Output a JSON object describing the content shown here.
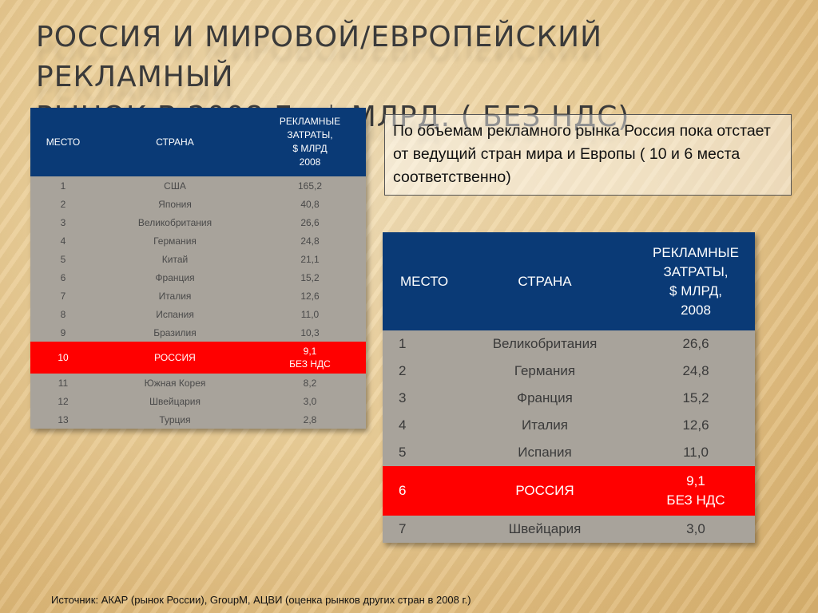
{
  "title": {
    "line1": "РОССИЯ И МИРОВОЙ/ЕВРОПЕЙСКИЙ РЕКЛАМНЫЙ",
    "line2": "РЫНОК В 2008 Г., $ МЛРД. ( БЕЗ НДС)"
  },
  "world_table": {
    "headers": {
      "place": "МЕСТО",
      "country": "СТРАНА",
      "spend_lines": [
        "РЕКЛАМНЫЕ",
        "ЗАТРАТЫ,",
        "$ МЛРД",
        "2008"
      ]
    },
    "rows": [
      {
        "place": "1",
        "country": "США",
        "value": "165,2"
      },
      {
        "place": "2",
        "country": "Япония",
        "value": "40,8"
      },
      {
        "place": "3",
        "country": "Великобритания",
        "value": "26,6"
      },
      {
        "place": "4",
        "country": "Германия",
        "value": "24,8"
      },
      {
        "place": "5",
        "country": "Китай",
        "value": "21,1"
      },
      {
        "place": "6",
        "country": "Франция",
        "value": "15,2"
      },
      {
        "place": "7",
        "country": "Италия",
        "value": "12,6"
      },
      {
        "place": "8",
        "country": "Испания",
        "value": "11,0"
      },
      {
        "place": "9",
        "country": "Бразилия",
        "value": "10,3"
      },
      {
        "place": "10",
        "country": "РОССИЯ",
        "value_lines": [
          "9,1",
          "БЕЗ НДС"
        ]
      },
      {
        "place": "11",
        "country": "Южная Корея",
        "value": "8,2"
      },
      {
        "place": "12",
        "country": "Швейцария",
        "value": "3,0"
      },
      {
        "place": "13",
        "country": "Турция",
        "value": "2,8"
      }
    ]
  },
  "europe_table": {
    "headers": {
      "place": "МЕСТО",
      "country": "СТРАНА",
      "spend_lines": [
        "РЕКЛАМНЫЕ",
        "ЗАТРАТЫ,",
        "$ МЛРД,",
        "2008"
      ]
    },
    "rows": [
      {
        "place": "1",
        "country": "Великобритания",
        "value": "26,6"
      },
      {
        "place": "2",
        "country": "Германия",
        "value": "24,8"
      },
      {
        "place": "3",
        "country": "Франция",
        "value": "15,2"
      },
      {
        "place": "4",
        "country": "Италия",
        "value": "12,6"
      },
      {
        "place": "5",
        "country": "Испания",
        "value": "11,0"
      },
      {
        "place": "6",
        "country": "РОССИЯ",
        "value_lines": [
          "9,1",
          "БЕЗ НДС"
        ]
      },
      {
        "place": "7",
        "country": "Швейцария",
        "value": "3,0"
      }
    ]
  },
  "note": "По объемам рекламного рынка Россия пока  отстает от ведущий стран мира и Европы ( 10 и 6 места соответственно)",
  "source": "Источник: АКАР (рынок России), GroupM, АЦВИ (оценка рынков других стран в 2008 г.)",
  "colors": {
    "header_bg": "#0a3a76",
    "highlight_bg": "#ff0000",
    "row_bg": "#a8a39b"
  }
}
